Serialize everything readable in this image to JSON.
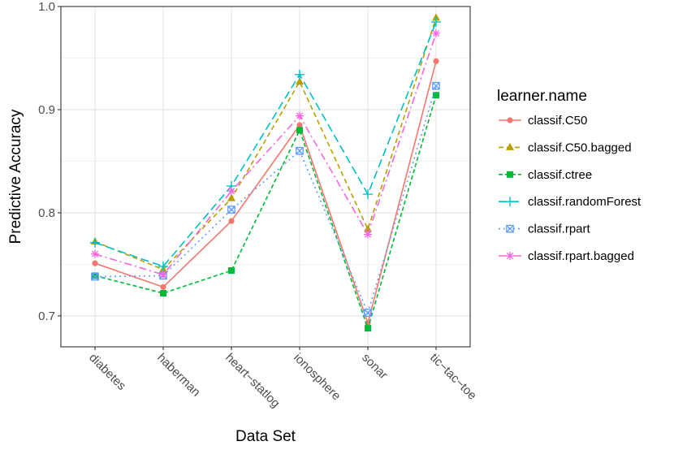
{
  "chart_data": {
    "type": "line",
    "title": "",
    "xlabel": "Data Set",
    "ylabel": "Predictive Accuracy",
    "categories": [
      "diabetes",
      "haberman",
      "heart−statlog",
      "ionosphere",
      "sonar",
      "tic−tac−toe"
    ],
    "ylim": [
      0.67,
      1.0
    ],
    "yticks": [
      0.7,
      0.8,
      0.9,
      1.0
    ],
    "ytick_labels": [
      "0.7",
      "0.8",
      "0.9",
      "1.0"
    ],
    "grid": true,
    "legend_title": "learner.name",
    "legend_position": "right",
    "series": [
      {
        "name": "classif.C50",
        "color": "#F8766D",
        "marker": "circle",
        "dash": "",
        "values": [
          0.751,
          0.728,
          0.792,
          0.885,
          0.693,
          0.947
        ]
      },
      {
        "name": "classif.C50.bagged",
        "color": "#B79F00",
        "marker": "triangle",
        "dash": "6,4",
        "values": [
          0.772,
          0.745,
          0.814,
          0.927,
          0.784,
          0.989
        ]
      },
      {
        "name": "classif.ctree",
        "color": "#00BA38",
        "marker": "square",
        "dash": "5,3",
        "values": [
          0.739,
          0.722,
          0.744,
          0.88,
          0.688,
          0.914
        ]
      },
      {
        "name": "classif.randomForest",
        "color": "#00BFC4",
        "marker": "plus",
        "dash": "10,5",
        "values": [
          0.771,
          0.748,
          0.826,
          0.934,
          0.818,
          0.985
        ]
      },
      {
        "name": "classif.rpart",
        "color": "#619CFF",
        "marker": "boxx",
        "dash": "2,4",
        "values": [
          0.738,
          0.739,
          0.803,
          0.86,
          0.703,
          0.923
        ]
      },
      {
        "name": "classif.rpart.bagged",
        "color": "#F564E3",
        "marker": "asterisk",
        "dash": "9,4,2,4",
        "values": [
          0.76,
          0.74,
          0.821,
          0.894,
          0.779,
          0.974
        ]
      }
    ]
  }
}
